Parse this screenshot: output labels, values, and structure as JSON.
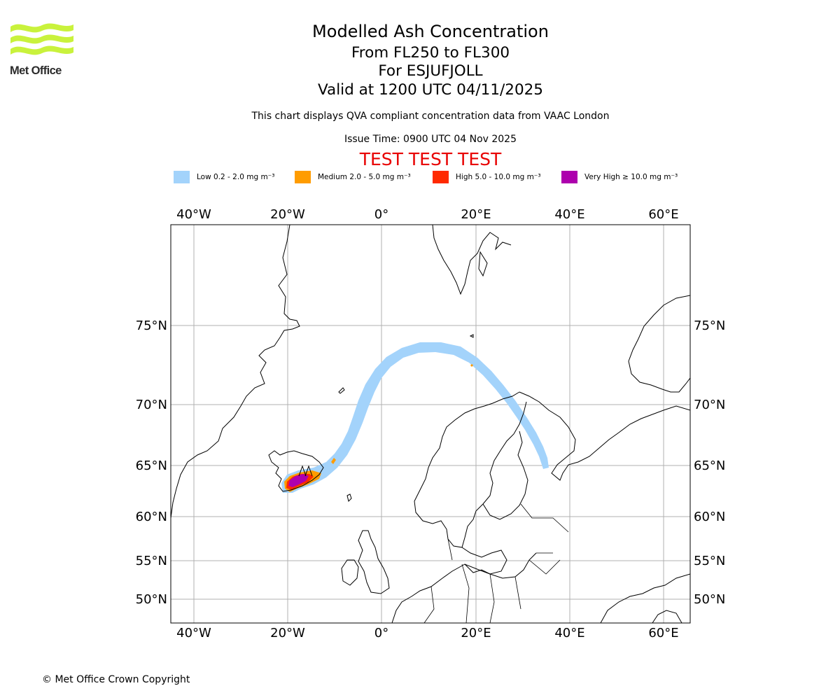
{
  "logo": {
    "text": "Met Office",
    "color": "#c9f23c"
  },
  "title": "Modelled Ash Concentration",
  "subtitle_levels": "From FL250 to FL300",
  "subtitle_volcano": "For ESJUFJOLL",
  "subtitle_valid": "Valid at 1200 UTC 04/11/2025",
  "description": "This chart displays QVA compliant concentration data from VAAC London",
  "issue_time": "Issue Time: 0900 UTC 04 Nov 2025",
  "test_banner": "TEST TEST TEST",
  "test_color": "#e80000",
  "legend": [
    {
      "label": "Low 0.2 - 2.0 mg m⁻³",
      "color": "#a3d3fb"
    },
    {
      "label": "Medium 2.0 - 5.0 mg m⁻³",
      "color": "#ff9c00"
    },
    {
      "label": "High 5.0 - 10.0 mg m⁻³",
      "color": "#ff2a00"
    },
    {
      "label": "Very High  ≥  10.0 mg m⁻³",
      "color": "#ad00ad"
    }
  ],
  "map": {
    "lon_ticks": [
      "40°W",
      "20°W",
      "0°",
      "20°E",
      "40°E",
      "60°E"
    ],
    "lat_ticks": [
      "75°N",
      "70°N",
      "65°N",
      "60°N",
      "55°N",
      "50°N"
    ],
    "grid": true,
    "coastline_color": "#000000",
    "gridline_color": "#b0b0b0"
  },
  "copyright": "© Met Office Crown Copyright"
}
